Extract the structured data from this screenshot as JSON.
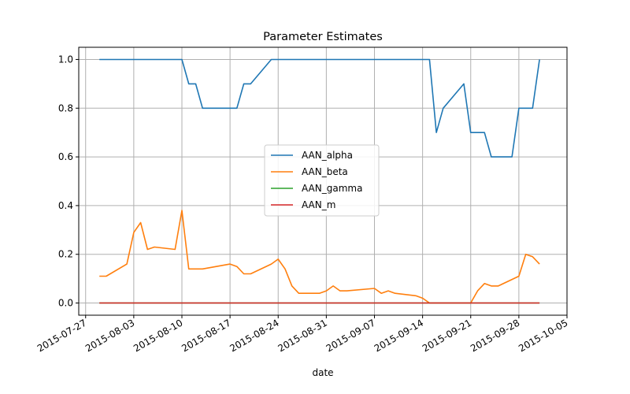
{
  "chart_data": {
    "type": "line",
    "title": "Parameter Estimates",
    "xlabel": "date",
    "ylabel": "",
    "xlim": [
      "2015-07-26",
      "2015-10-05"
    ],
    "ylim": [
      -0.05,
      1.05
    ],
    "x_ticks": [
      "2015-07-27",
      "2015-08-03",
      "2015-08-10",
      "2015-08-17",
      "2015-08-24",
      "2015-08-31",
      "2015-09-07",
      "2015-09-14",
      "2015-09-21",
      "2015-09-28",
      "2015-10-05"
    ],
    "y_ticks": [
      "0.0",
      "0.2",
      "0.4",
      "0.6",
      "0.8",
      "1.0"
    ],
    "grid": true,
    "legend_position": "center",
    "series": [
      {
        "name": "AAN_alpha",
        "color": "#1f77b4",
        "points": [
          [
            "2015-07-29",
            1.0
          ],
          [
            "2015-08-10",
            1.0
          ],
          [
            "2015-08-11",
            0.9
          ],
          [
            "2015-08-12",
            0.9
          ],
          [
            "2015-08-13",
            0.8
          ],
          [
            "2015-08-18",
            0.8
          ],
          [
            "2015-08-19",
            0.9
          ],
          [
            "2015-08-20",
            0.9
          ],
          [
            "2015-08-23",
            1.0
          ],
          [
            "2015-09-15",
            1.0
          ],
          [
            "2015-09-16",
            0.7
          ],
          [
            "2015-09-17",
            0.8
          ],
          [
            "2015-09-20",
            0.9
          ],
          [
            "2015-09-21",
            0.7
          ],
          [
            "2015-09-23",
            0.7
          ],
          [
            "2015-09-24",
            0.6
          ],
          [
            "2015-09-27",
            0.6
          ],
          [
            "2015-09-28",
            0.8
          ],
          [
            "2015-09-30",
            0.8
          ],
          [
            "2015-10-01",
            1.0
          ]
        ]
      },
      {
        "name": "AAN_beta",
        "color": "#ff7f0e",
        "points": [
          [
            "2015-07-29",
            0.11
          ],
          [
            "2015-07-30",
            0.11
          ],
          [
            "2015-08-02",
            0.16
          ],
          [
            "2015-08-03",
            0.29
          ],
          [
            "2015-08-04",
            0.33
          ],
          [
            "2015-08-05",
            0.22
          ],
          [
            "2015-08-06",
            0.23
          ],
          [
            "2015-08-09",
            0.22
          ],
          [
            "2015-08-10",
            0.38
          ],
          [
            "2015-08-11",
            0.14
          ],
          [
            "2015-08-13",
            0.14
          ],
          [
            "2015-08-17",
            0.16
          ],
          [
            "2015-08-18",
            0.15
          ],
          [
            "2015-08-19",
            0.12
          ],
          [
            "2015-08-20",
            0.12
          ],
          [
            "2015-08-23",
            0.16
          ],
          [
            "2015-08-24",
            0.18
          ],
          [
            "2015-08-25",
            0.14
          ],
          [
            "2015-08-26",
            0.07
          ],
          [
            "2015-08-27",
            0.04
          ],
          [
            "2015-08-30",
            0.04
          ],
          [
            "2015-08-31",
            0.05
          ],
          [
            "2015-09-01",
            0.07
          ],
          [
            "2015-09-02",
            0.05
          ],
          [
            "2015-09-03",
            0.05
          ],
          [
            "2015-09-07",
            0.06
          ],
          [
            "2015-09-08",
            0.04
          ],
          [
            "2015-09-09",
            0.05
          ],
          [
            "2015-09-10",
            0.04
          ],
          [
            "2015-09-13",
            0.03
          ],
          [
            "2015-09-14",
            0.02
          ],
          [
            "2015-09-15",
            0.0
          ],
          [
            "2015-09-21",
            0.0
          ],
          [
            "2015-09-22",
            0.05
          ],
          [
            "2015-09-23",
            0.08
          ],
          [
            "2015-09-24",
            0.07
          ],
          [
            "2015-09-25",
            0.07
          ],
          [
            "2015-09-28",
            0.11
          ],
          [
            "2015-09-29",
            0.2
          ],
          [
            "2015-09-30",
            0.19
          ],
          [
            "2015-10-01",
            0.16
          ]
        ]
      },
      {
        "name": "AAN_gamma",
        "color": "#2ca02c",
        "points": [
          [
            "2015-07-29",
            0.0
          ],
          [
            "2015-10-01",
            0.0
          ]
        ]
      },
      {
        "name": "AAN_m",
        "color": "#d62728",
        "points": [
          [
            "2015-07-29",
            0.0
          ],
          [
            "2015-10-01",
            0.0
          ]
        ]
      }
    ]
  }
}
